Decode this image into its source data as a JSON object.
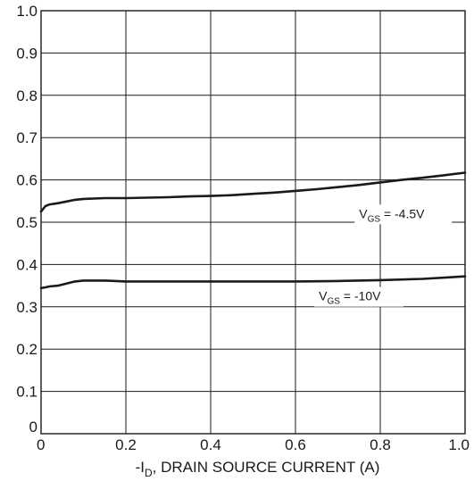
{
  "chart_data": {
    "type": "line",
    "title": "",
    "xlabel": {
      "prefix": "-I",
      "subscript": "D",
      "suffix": ", DRAIN SOURCE CURRENT (A)"
    },
    "ylabel": "",
    "xlim": [
      0,
      1.0
    ],
    "ylim": [
      0,
      1.0
    ],
    "x_ticks": [
      {
        "value": 0,
        "label": "0"
      },
      {
        "value": 0.2,
        "label": "0.2"
      },
      {
        "value": 0.4,
        "label": "0.4"
      },
      {
        "value": 0.6,
        "label": "0.6"
      },
      {
        "value": 0.8,
        "label": "0.8"
      },
      {
        "value": 1.0,
        "label": "1.0"
      }
    ],
    "y_ticks": [
      {
        "value": 0,
        "label": "0"
      },
      {
        "value": 0.1,
        "label": "0.1"
      },
      {
        "value": 0.2,
        "label": "0.2"
      },
      {
        "value": 0.3,
        "label": "0.3"
      },
      {
        "value": 0.4,
        "label": "0.4"
      },
      {
        "value": 0.5,
        "label": "0.5"
      },
      {
        "value": 0.6,
        "label": "0.6"
      },
      {
        "value": 0.7,
        "label": "0.7"
      },
      {
        "value": 0.8,
        "label": "0.8"
      },
      {
        "value": 0.9,
        "label": "0.9"
      },
      {
        "value": 1.0,
        "label": "1.0"
      }
    ],
    "grid": true,
    "line_color": "#1a1a1a",
    "grid_color": "#1a1a1a",
    "series": [
      {
        "label_main": "V",
        "label_sub": "GS",
        "label_rest": " = -4.5V",
        "label_at": {
          "x": 0.75,
          "y": 0.51
        },
        "x": [
          0,
          0.01,
          0.02,
          0.04,
          0.06,
          0.08,
          0.1,
          0.15,
          0.2,
          0.25,
          0.3,
          0.35,
          0.4,
          0.45,
          0.5,
          0.55,
          0.6,
          0.65,
          0.7,
          0.75,
          0.8,
          0.85,
          0.9,
          0.95,
          1.0
        ],
        "y": [
          0.525,
          0.538,
          0.542,
          0.545,
          0.549,
          0.553,
          0.555,
          0.557,
          0.557,
          0.558,
          0.559,
          0.561,
          0.562,
          0.564,
          0.567,
          0.57,
          0.574,
          0.578,
          0.583,
          0.588,
          0.594,
          0.6,
          0.605,
          0.611,
          0.617
        ]
      },
      {
        "label_main": "V",
        "label_sub": "GS",
        "label_rest": " = -10V",
        "label_at": {
          "x": 0.655,
          "y": 0.315
        },
        "x": [
          0,
          0.01,
          0.02,
          0.04,
          0.06,
          0.08,
          0.1,
          0.15,
          0.2,
          0.3,
          0.4,
          0.5,
          0.6,
          0.7,
          0.8,
          0.9,
          1.0
        ],
        "y": [
          0.344,
          0.346,
          0.348,
          0.35,
          0.355,
          0.36,
          0.362,
          0.362,
          0.36,
          0.36,
          0.36,
          0.36,
          0.36,
          0.361,
          0.363,
          0.366,
          0.372
        ]
      }
    ]
  }
}
